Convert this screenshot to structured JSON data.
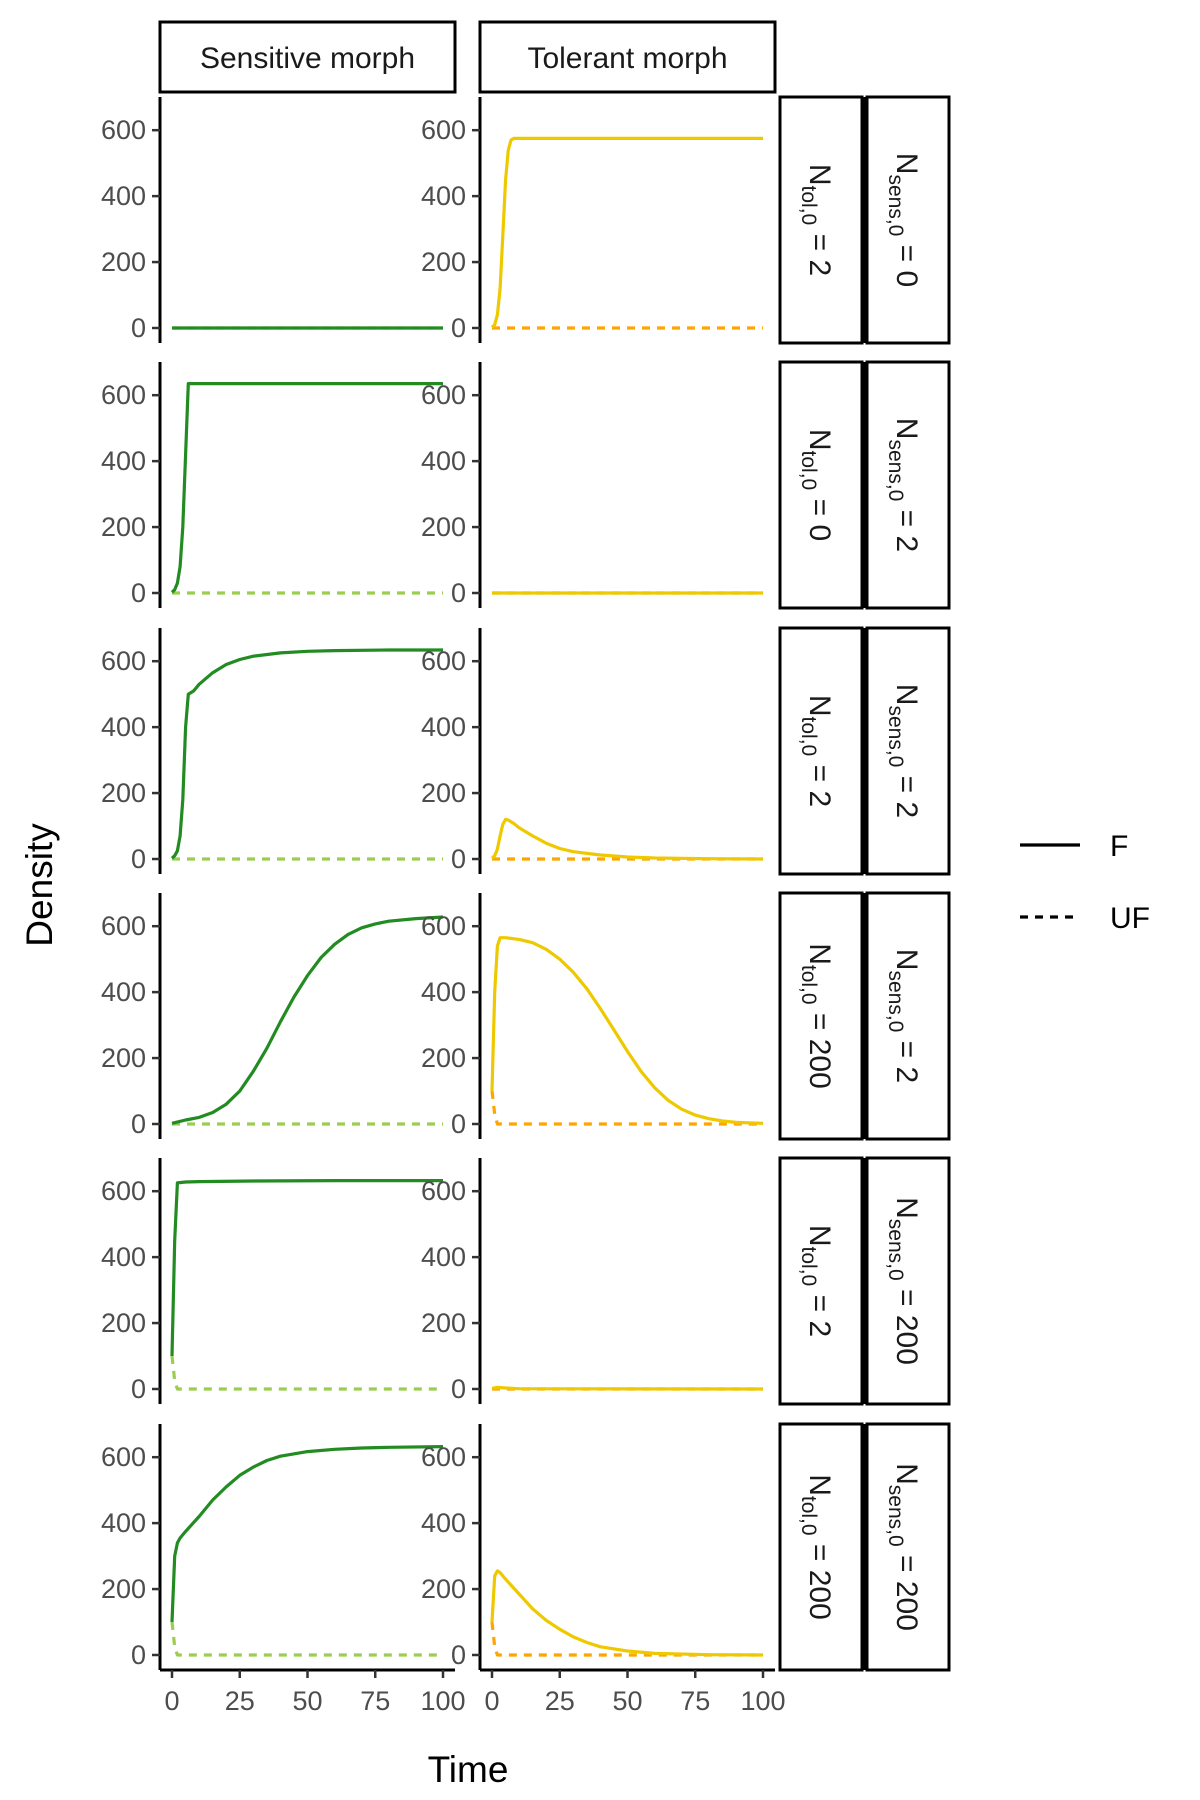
{
  "chart_data": {
    "type": "line",
    "xlabel": "Time",
    "ylabel": "Density",
    "xlim": [
      0,
      100
    ],
    "ylim": [
      0,
      640
    ],
    "x_ticks": [
      0,
      25,
      50,
      75,
      100
    ],
    "y_ticks": [
      0,
      200,
      400,
      600
    ],
    "columns": [
      "Sensitive morph",
      "Tolerant morph"
    ],
    "row_facets": [
      {
        "N_tol": "2",
        "N_sens": "0"
      },
      {
        "N_tol": "0",
        "N_sens": "2"
      },
      {
        "N_tol": "2",
        "N_sens": "2"
      },
      {
        "N_tol": "200",
        "N_sens": "2"
      },
      {
        "N_tol": "2",
        "N_sens": "200"
      },
      {
        "N_tol": "200",
        "N_sens": "200"
      }
    ],
    "facet_label_parts": {
      "N": "N",
      "tol_sub": "tol,0",
      "sens_sub": "sens,0",
      "eq": " = "
    },
    "legend": [
      {
        "label": "F",
        "linetype": "solid"
      },
      {
        "label": "UF",
        "linetype": "dashed"
      }
    ],
    "colors": {
      "sensitive_F": "#228B22",
      "sensitive_UF": "#9ACD50",
      "tolerant_F": "#EEC900",
      "tolerant_UF": "#FFA500"
    },
    "panels": [
      {
        "sensitive": {
          "F": [
            [
              0,
              0
            ],
            [
              100,
              0
            ]
          ],
          "UF": [
            [
              0,
              0
            ],
            [
              100,
              0
            ]
          ]
        },
        "tolerant": {
          "F": [
            [
              0,
              2
            ],
            [
              1,
              10
            ],
            [
              2,
              40
            ],
            [
              3,
              120
            ],
            [
              4,
              280
            ],
            [
              5,
              450
            ],
            [
              6,
              540
            ],
            [
              7,
              570
            ],
            [
              8,
              575
            ],
            [
              10,
              575
            ],
            [
              100,
              575
            ]
          ],
          "UF": [
            [
              0,
              0
            ],
            [
              100,
              0
            ]
          ]
        }
      },
      {
        "sensitive": {
          "F": [
            [
              0,
              2
            ],
            [
              1,
              10
            ],
            [
              2,
              30
            ],
            [
              3,
              80
            ],
            [
              4,
              200
            ],
            [
              5,
              420
            ],
            [
              6,
              635
            ],
            [
              10,
              635
            ],
            [
              100,
              635
            ]
          ],
          "UF": [
            [
              0,
              0
            ],
            [
              100,
              0
            ]
          ]
        },
        "tolerant": {
          "F": [
            [
              0,
              0
            ],
            [
              100,
              0
            ]
          ],
          "UF": [
            [
              0,
              0
            ],
            [
              100,
              0
            ]
          ]
        }
      },
      {
        "sensitive": {
          "F": [
            [
              0,
              2
            ],
            [
              1,
              10
            ],
            [
              2,
              25
            ],
            [
              3,
              70
            ],
            [
              4,
              180
            ],
            [
              5,
              400
            ],
            [
              6,
              500
            ],
            [
              8,
              510
            ],
            [
              10,
              530
            ],
            [
              15,
              565
            ],
            [
              20,
              590
            ],
            [
              25,
              605
            ],
            [
              30,
              615
            ],
            [
              40,
              625
            ],
            [
              50,
              630
            ],
            [
              60,
              632
            ],
            [
              80,
              634
            ],
            [
              100,
              634
            ]
          ],
          "UF": [
            [
              0,
              0
            ],
            [
              100,
              0
            ]
          ]
        },
        "tolerant": {
          "F": [
            [
              0,
              2
            ],
            [
              1,
              10
            ],
            [
              2,
              30
            ],
            [
              3,
              70
            ],
            [
              4,
              105
            ],
            [
              5,
              120
            ],
            [
              6,
              118
            ],
            [
              8,
              108
            ],
            [
              10,
              95
            ],
            [
              15,
              70
            ],
            [
              20,
              48
            ],
            [
              25,
              32
            ],
            [
              30,
              22
            ],
            [
              40,
              12
            ],
            [
              50,
              6
            ],
            [
              60,
              3
            ],
            [
              80,
              1
            ],
            [
              100,
              0
            ]
          ],
          "UF": [
            [
              0,
              0
            ],
            [
              100,
              0
            ]
          ]
        }
      },
      {
        "sensitive": {
          "F": [
            [
              0,
              2
            ],
            [
              5,
              12
            ],
            [
              10,
              20
            ],
            [
              15,
              35
            ],
            [
              20,
              60
            ],
            [
              25,
              100
            ],
            [
              30,
              160
            ],
            [
              35,
              230
            ],
            [
              40,
              310
            ],
            [
              45,
              385
            ],
            [
              50,
              450
            ],
            [
              55,
              505
            ],
            [
              60,
              545
            ],
            [
              65,
              575
            ],
            [
              70,
              595
            ],
            [
              75,
              607
            ],
            [
              80,
              615
            ],
            [
              90,
              623
            ],
            [
              100,
              628
            ]
          ],
          "UF": [
            [
              0,
              0
            ],
            [
              100,
              0
            ]
          ]
        },
        "tolerant": {
          "F": [
            [
              0,
              100
            ],
            [
              1,
              400
            ],
            [
              2,
              540
            ],
            [
              3,
              565
            ],
            [
              5,
              565
            ],
            [
              10,
              560
            ],
            [
              15,
              550
            ],
            [
              20,
              530
            ],
            [
              25,
              500
            ],
            [
              30,
              460
            ],
            [
              35,
              410
            ],
            [
              40,
              350
            ],
            [
              45,
              285
            ],
            [
              50,
              220
            ],
            [
              55,
              160
            ],
            [
              60,
              110
            ],
            [
              65,
              72
            ],
            [
              70,
              45
            ],
            [
              75,
              27
            ],
            [
              80,
              16
            ],
            [
              85,
              9
            ],
            [
              90,
              5
            ],
            [
              100,
              2
            ]
          ],
          "UF": [
            [
              0,
              100
            ],
            [
              1,
              30
            ],
            [
              2,
              0
            ],
            [
              100,
              0
            ]
          ]
        }
      },
      {
        "sensitive": {
          "F": [
            [
              0,
              100
            ],
            [
              1,
              450
            ],
            [
              2,
              625
            ],
            [
              5,
              628
            ],
            [
              10,
              629
            ],
            [
              30,
              631
            ],
            [
              60,
              632
            ],
            [
              100,
              632
            ]
          ],
          "UF": [
            [
              0,
              100
            ],
            [
              1,
              25
            ],
            [
              2,
              0
            ],
            [
              100,
              0
            ]
          ]
        },
        "tolerant": {
          "F": [
            [
              0,
              2
            ],
            [
              2,
              5
            ],
            [
              5,
              3
            ],
            [
              10,
              1
            ],
            [
              100,
              0
            ]
          ],
          "UF": [
            [
              0,
              0
            ],
            [
              100,
              0
            ]
          ]
        }
      },
      {
        "sensitive": {
          "F": [
            [
              0,
              100
            ],
            [
              1,
              300
            ],
            [
              2,
              340
            ],
            [
              3,
              355
            ],
            [
              5,
              375
            ],
            [
              10,
              420
            ],
            [
              15,
              470
            ],
            [
              20,
              510
            ],
            [
              25,
              545
            ],
            [
              30,
              570
            ],
            [
              35,
              590
            ],
            [
              40,
              603
            ],
            [
              50,
              617
            ],
            [
              60,
              624
            ],
            [
              70,
              628
            ],
            [
              80,
              630
            ],
            [
              100,
              632
            ]
          ],
          "UF": [
            [
              0,
              100
            ],
            [
              1,
              25
            ],
            [
              2,
              0
            ],
            [
              100,
              0
            ]
          ]
        },
        "tolerant": {
          "F": [
            [
              0,
              100
            ],
            [
              1,
              240
            ],
            [
              2,
              255
            ],
            [
              3,
              250
            ],
            [
              5,
              230
            ],
            [
              10,
              185
            ],
            [
              15,
              140
            ],
            [
              20,
              105
            ],
            [
              25,
              78
            ],
            [
              30,
              55
            ],
            [
              35,
              38
            ],
            [
              40,
              25
            ],
            [
              50,
              12
            ],
            [
              60,
              5
            ],
            [
              80,
              1
            ],
            [
              100,
              0
            ]
          ],
          "UF": [
            [
              0,
              100
            ],
            [
              1,
              25
            ],
            [
              2,
              0
            ],
            [
              100,
              0
            ]
          ]
        }
      }
    ]
  }
}
